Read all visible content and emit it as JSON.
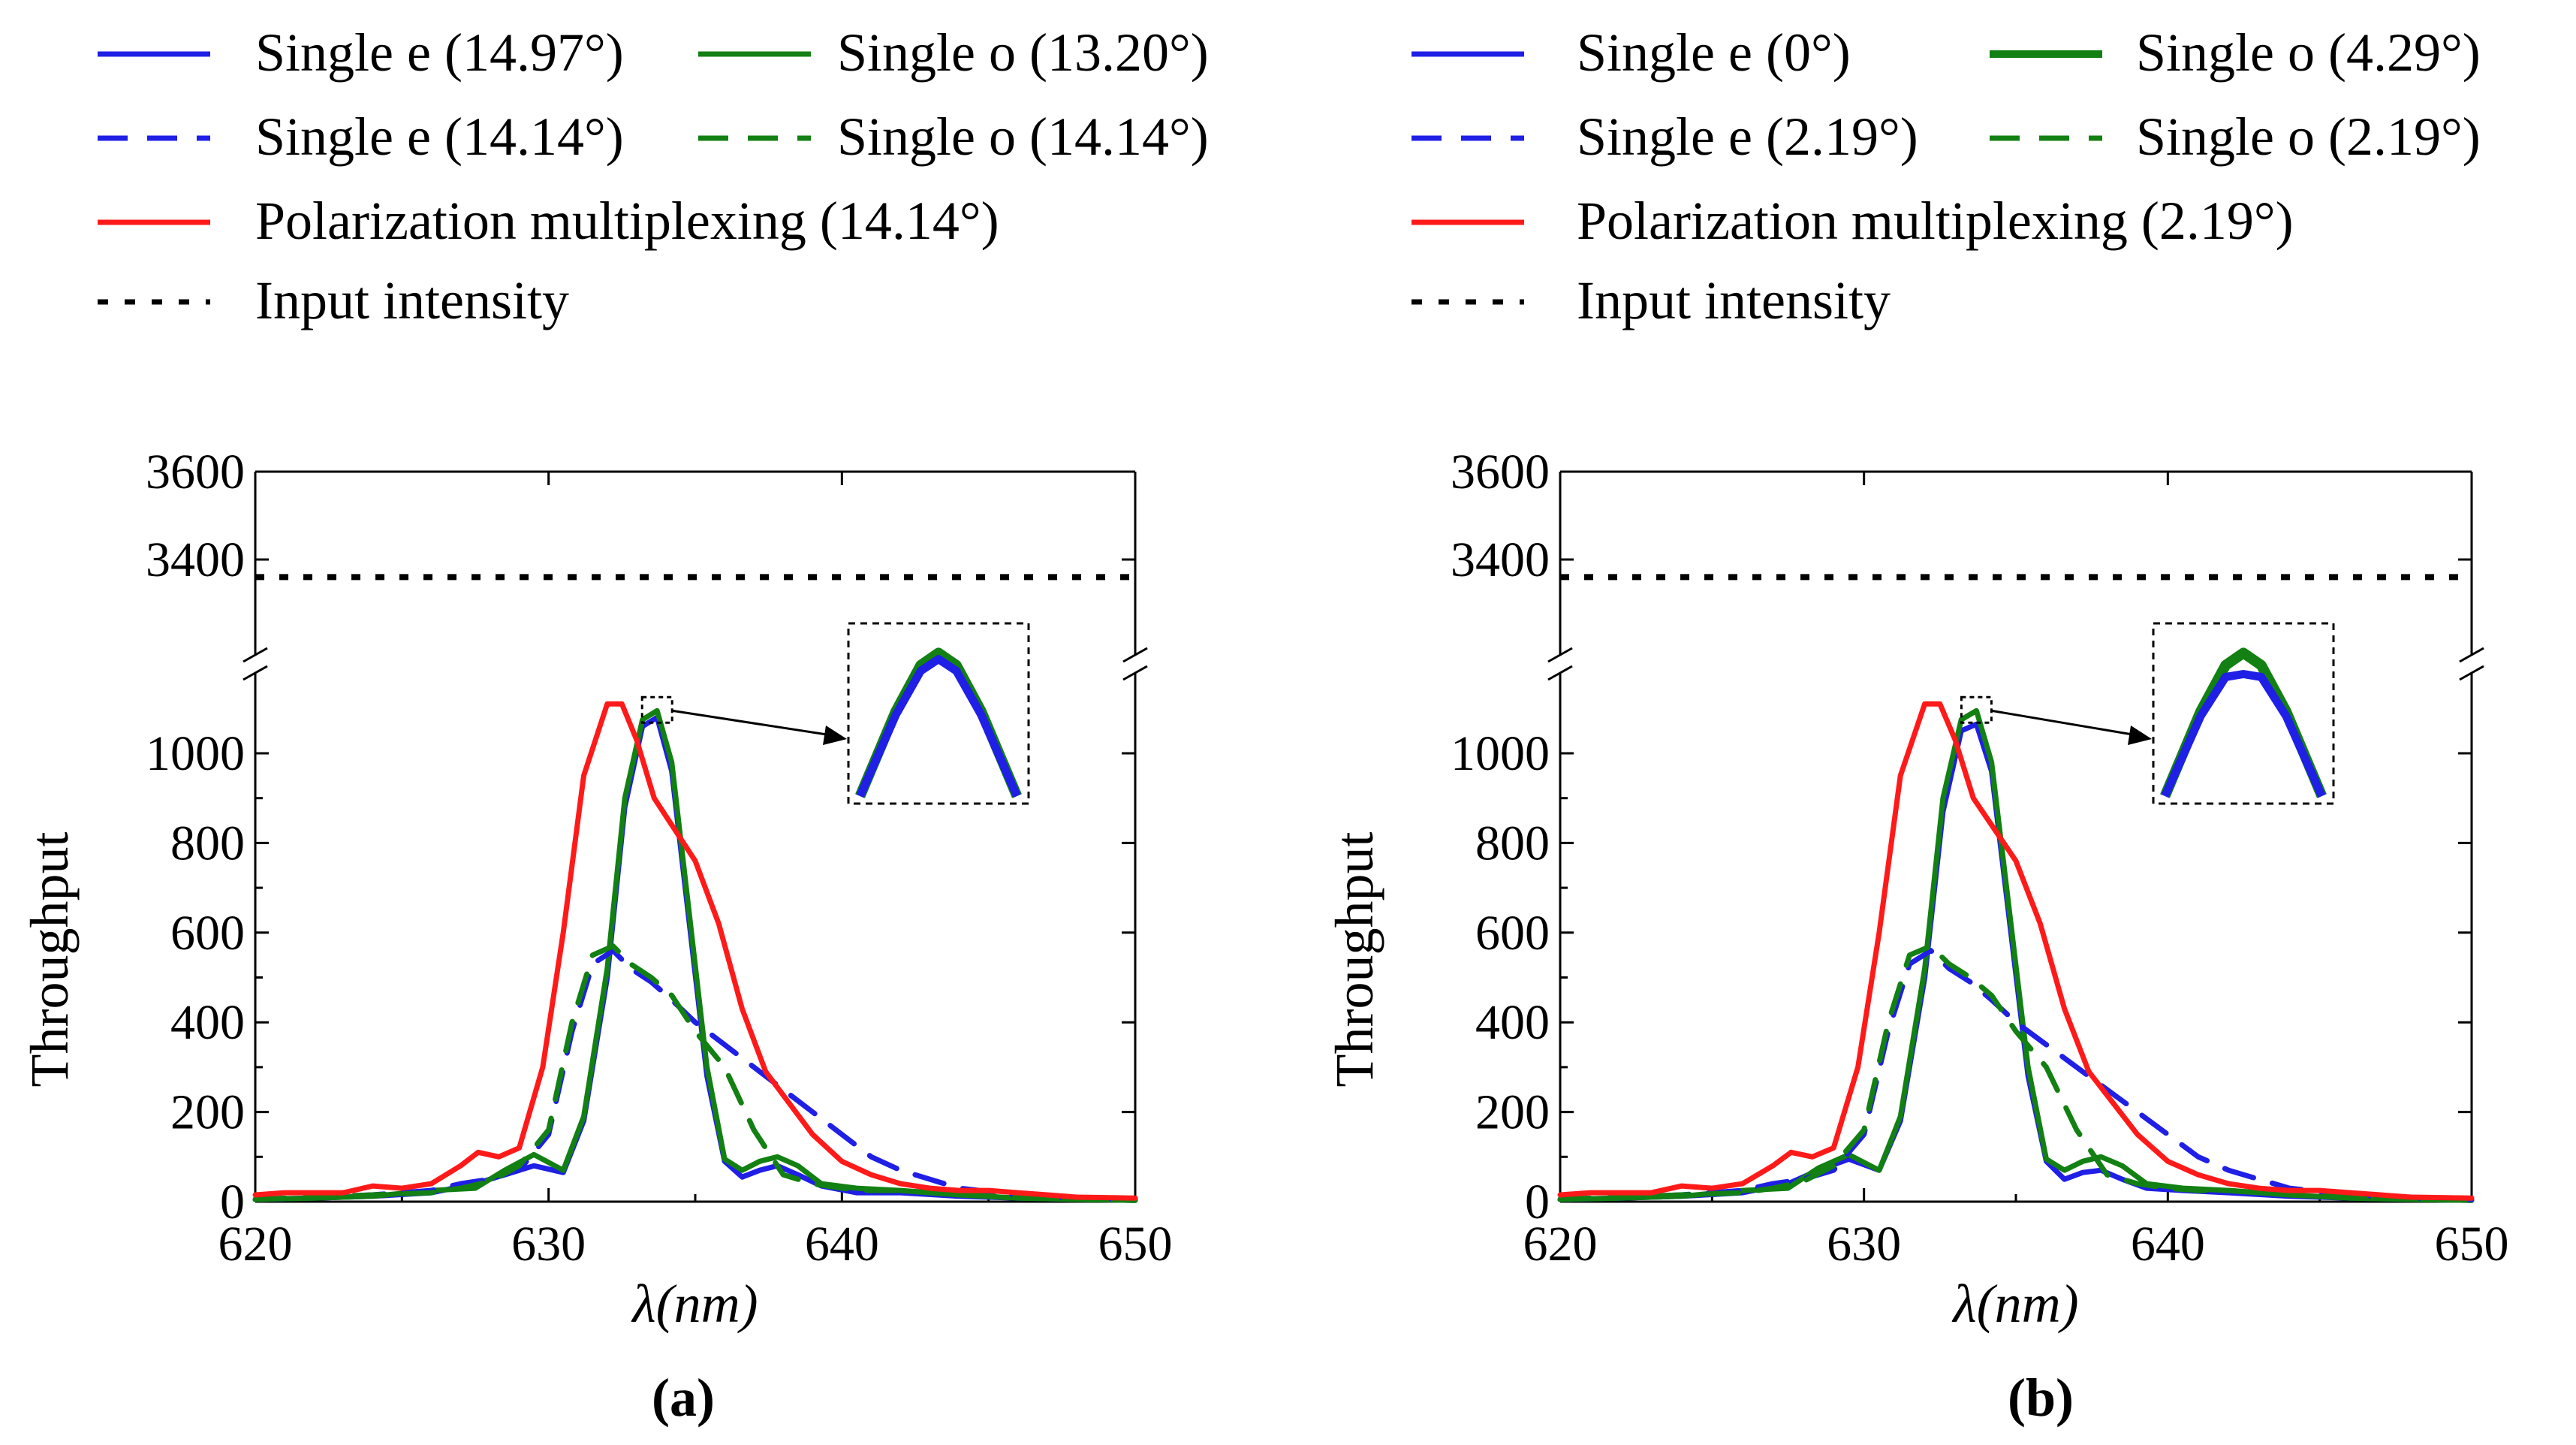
{
  "colors": {
    "e": "#1f1fe6",
    "o": "#128012",
    "pm": "#ff1a1a",
    "input": "#000000"
  },
  "panels": [
    {
      "label": "(a)",
      "legend": [
        {
          "text": "Single e (14.97°)",
          "color": "#1f1fe6",
          "style": "solid"
        },
        {
          "text": "Single o (13.20°)",
          "color": "#128012",
          "style": "solid"
        },
        {
          "text": "Single e (14.14°)",
          "color": "#1f1fe6",
          "style": "dashed"
        },
        {
          "text": "Single o (14.14°)",
          "color": "#128012",
          "style": "dashed"
        },
        {
          "text": "Polarization multiplexing (14.14°)",
          "color": "#ff1a1a",
          "style": "solid"
        },
        {
          "text": "Input intensity",
          "color": "#000000",
          "style": "dotted"
        }
      ],
      "chart_data": {
        "type": "line",
        "xlabel": "λ(nm)",
        "ylabel": "Throughput",
        "xlim": [
          620,
          650
        ],
        "ylim_lower": [
          0,
          1200
        ],
        "ylim_upper": [
          3200,
          3600
        ],
        "xticks": [
          "620",
          "630",
          "640",
          "650"
        ],
        "yticks": [
          "0",
          "200",
          "400",
          "600",
          "800",
          "1000",
          "3400",
          "3600"
        ],
        "axis_break": true,
        "input_intensity": 3360,
        "series": [
          {
            "name": "Single e (14.97°)",
            "style": "solid",
            "color": "#1f1fe6",
            "x": [
              620,
              622,
              624,
              626,
              627.5,
              628.5,
              629.5,
              630.5,
              631.2,
              632,
              632.6,
              633.2,
              633.7,
              634.2,
              634.8,
              635.4,
              636,
              636.6,
              637.2,
              637.8,
              638.5,
              639.3,
              640.5,
              642,
              644,
              646,
              648,
              650
            ],
            "y": [
              5,
              8,
              12,
              20,
              40,
              60,
              80,
              65,
              180,
              500,
              880,
              1060,
              1080,
              960,
              620,
              280,
              90,
              55,
              70,
              80,
              60,
              35,
              20,
              20,
              12,
              8,
              5,
              3
            ]
          },
          {
            "name": "Single o (13.20°)",
            "style": "solid",
            "color": "#128012",
            "x": [
              620,
              622,
              624,
              626,
              627.5,
              628.5,
              629.5,
              630.5,
              631.2,
              632,
              632.6,
              633.2,
              633.7,
              634.2,
              634.8,
              635.4,
              636,
              636.6,
              637.2,
              637.8,
              638.5,
              639.3,
              640.5,
              642,
              644,
              646,
              648,
              650
            ],
            "y": [
              5,
              8,
              12,
              25,
              30,
              70,
              105,
              70,
              190,
              520,
              900,
              1075,
              1095,
              980,
              640,
              300,
              95,
              70,
              90,
              100,
              80,
              40,
              30,
              25,
              15,
              8,
              5,
              3
            ]
          },
          {
            "name": "Single e (14.14°)",
            "style": "dashed",
            "color": "#1f1fe6",
            "x": [
              620,
              622,
              624,
              626,
              627,
              628,
              629,
              630,
              630.8,
              631.5,
              632.2,
              632.8,
              633.5,
              634.2,
              635,
              636,
              637,
              638,
              639,
              640,
              641,
              642,
              643,
              644,
              646,
              648,
              650
            ],
            "y": [
              5,
              10,
              15,
              25,
              40,
              50,
              70,
              150,
              380,
              530,
              560,
              520,
              490,
              450,
              400,
              350,
              300,
              250,
              200,
              150,
              100,
              70,
              50,
              30,
              15,
              8,
              5
            ]
          },
          {
            "name": "Single o (14.14°)",
            "style": "dashed",
            "color": "#128012",
            "x": [
              620,
              622,
              624,
              626,
              627,
              628,
              629,
              630,
              630.8,
              631.5,
              632.2,
              632.8,
              633.5,
              634.2,
              635,
              636,
              637,
              638,
              639,
              640,
              641,
              642,
              643,
              644,
              646,
              648,
              650
            ],
            "y": [
              5,
              10,
              15,
              20,
              30,
              45,
              80,
              160,
              400,
              550,
              570,
              530,
              500,
              460,
              380,
              300,
              160,
              60,
              40,
              30,
              25,
              25,
              20,
              15,
              10,
              5,
              3
            ]
          },
          {
            "name": "Polarization multiplexing (14.14°)",
            "style": "solid",
            "color": "#ff1a1a",
            "x": [
              620,
              621,
              622,
              623,
              624,
              625,
              626,
              627,
              627.6,
              628.3,
              629,
              629.8,
              630.5,
              631.2,
              632,
              632.5,
              633,
              633.6,
              634.3,
              635,
              635.8,
              636.6,
              637.4,
              638.2,
              639,
              640,
              641,
              642,
              643,
              644,
              645,
              646,
              647,
              648,
              650
            ],
            "y": [
              15,
              20,
              20,
              20,
              35,
              30,
              40,
              80,
              110,
              100,
              120,
              300,
              600,
              950,
              1110,
              1110,
              1030,
              900,
              830,
              760,
              620,
              430,
              290,
              220,
              150,
              90,
              60,
              40,
              30,
              25,
              25,
              20,
              15,
              10,
              8
            ]
          }
        ]
      }
    },
    {
      "label": "(b)",
      "legend": [
        {
          "text": "Single e (0°)",
          "color": "#1f1fe6",
          "style": "solid"
        },
        {
          "text": "Single o (4.29°)",
          "color": "#128012",
          "style": "solid"
        },
        {
          "text": "Single e (2.19°)",
          "color": "#1f1fe6",
          "style": "dashed"
        },
        {
          "text": "Single o (2.19°)",
          "color": "#128012",
          "style": "dashed"
        },
        {
          "text": "Polarization multiplexing (2.19°)",
          "color": "#ff1a1a",
          "style": "solid"
        },
        {
          "text": "Input intensity",
          "color": "#000000",
          "style": "dotted"
        }
      ],
      "chart_data": {
        "type": "line",
        "xlabel": "λ(nm)",
        "ylabel": "Throughput",
        "xlim": [
          620,
          650
        ],
        "ylim_lower": [
          0,
          1200
        ],
        "ylim_upper": [
          3200,
          3600
        ],
        "xticks": [
          "620",
          "630",
          "640",
          "650"
        ],
        "yticks": [
          "0",
          "200",
          "400",
          "600",
          "800",
          "1000",
          "3400",
          "3600"
        ],
        "axis_break": true,
        "input_intensity": 3360,
        "series": [
          {
            "name": "Single e (0°)",
            "style": "solid",
            "color": "#1f1fe6",
            "x": [
              620,
              622,
              624,
              626,
              627.5,
              628.5,
              629.5,
              630.5,
              631.2,
              632,
              632.6,
              633.2,
              633.7,
              634.2,
              634.8,
              635.4,
              636,
              636.6,
              637.2,
              637.8,
              638.5,
              639.3,
              640.5,
              642,
              644,
              646,
              648,
              650
            ],
            "y": [
              5,
              8,
              12,
              20,
              40,
              70,
              95,
              70,
              180,
              500,
              870,
              1050,
              1065,
              960,
              620,
              280,
              90,
              50,
              65,
              70,
              50,
              30,
              25,
              20,
              12,
              8,
              5,
              3
            ]
          },
          {
            "name": "Single o (4.29°)",
            "style": "solid",
            "color": "#128012",
            "x": [
              620,
              622,
              624,
              626,
              627.5,
              628.5,
              629.5,
              630.5,
              631.2,
              632,
              632.6,
              633.2,
              633.7,
              634.2,
              634.8,
              635.4,
              636,
              636.6,
              637.2,
              637.8,
              638.5,
              639.3,
              640.5,
              642,
              644,
              646,
              648,
              650
            ],
            "y": [
              5,
              8,
              12,
              25,
              30,
              75,
              105,
              70,
              190,
              520,
              900,
              1075,
              1095,
              980,
              640,
              300,
              95,
              70,
              90,
              100,
              80,
              40,
              30,
              25,
              15,
              8,
              5,
              3
            ]
          },
          {
            "name": "Single e (2.19°)",
            "style": "dashed",
            "color": "#1f1fe6",
            "x": [
              620,
              622,
              624,
              626,
              627,
              628,
              629,
              630,
              630.8,
              631.5,
              632.2,
              632.8,
              633.5,
              634.2,
              635,
              636,
              637,
              638,
              639,
              640,
              641,
              642,
              643,
              644,
              646,
              648,
              650
            ],
            "y": [
              5,
              10,
              15,
              25,
              40,
              50,
              70,
              150,
              380,
              530,
              560,
              520,
              490,
              450,
              400,
              350,
              300,
              250,
              200,
              150,
              100,
              70,
              50,
              30,
              15,
              8,
              5
            ]
          },
          {
            "name": "Single o (2.19°)",
            "style": "dashed",
            "color": "#128012",
            "x": [
              620,
              622,
              624,
              626,
              627,
              628,
              629,
              630,
              630.8,
              631.5,
              632.2,
              632.8,
              633.5,
              634.2,
              635,
              636,
              637,
              638,
              639,
              640,
              641,
              642,
              643,
              644,
              646,
              648,
              650
            ],
            "y": [
              5,
              10,
              15,
              20,
              30,
              45,
              80,
              160,
              400,
              550,
              570,
              530,
              500,
              460,
              380,
              300,
              160,
              60,
              40,
              30,
              25,
              25,
              20,
              15,
              10,
              5,
              3
            ]
          },
          {
            "name": "Polarization multiplexing (2.19°)",
            "style": "solid",
            "color": "#ff1a1a",
            "x": [
              620,
              621,
              622,
              623,
              624,
              625,
              626,
              627,
              627.6,
              628.3,
              629,
              629.8,
              630.5,
              631.2,
              632,
              632.5,
              633,
              633.6,
              634.3,
              635,
              635.8,
              636.6,
              637.4,
              638.2,
              639,
              640,
              641,
              642,
              643,
              644,
              645,
              646,
              647,
              648,
              650
            ],
            "y": [
              15,
              20,
              20,
              20,
              35,
              30,
              40,
              80,
              110,
              100,
              120,
              300,
              600,
              950,
              1110,
              1110,
              1030,
              900,
              830,
              760,
              620,
              430,
              290,
              220,
              150,
              90,
              60,
              40,
              30,
              25,
              25,
              20,
              15,
              10,
              8
            ]
          }
        ]
      }
    }
  ]
}
